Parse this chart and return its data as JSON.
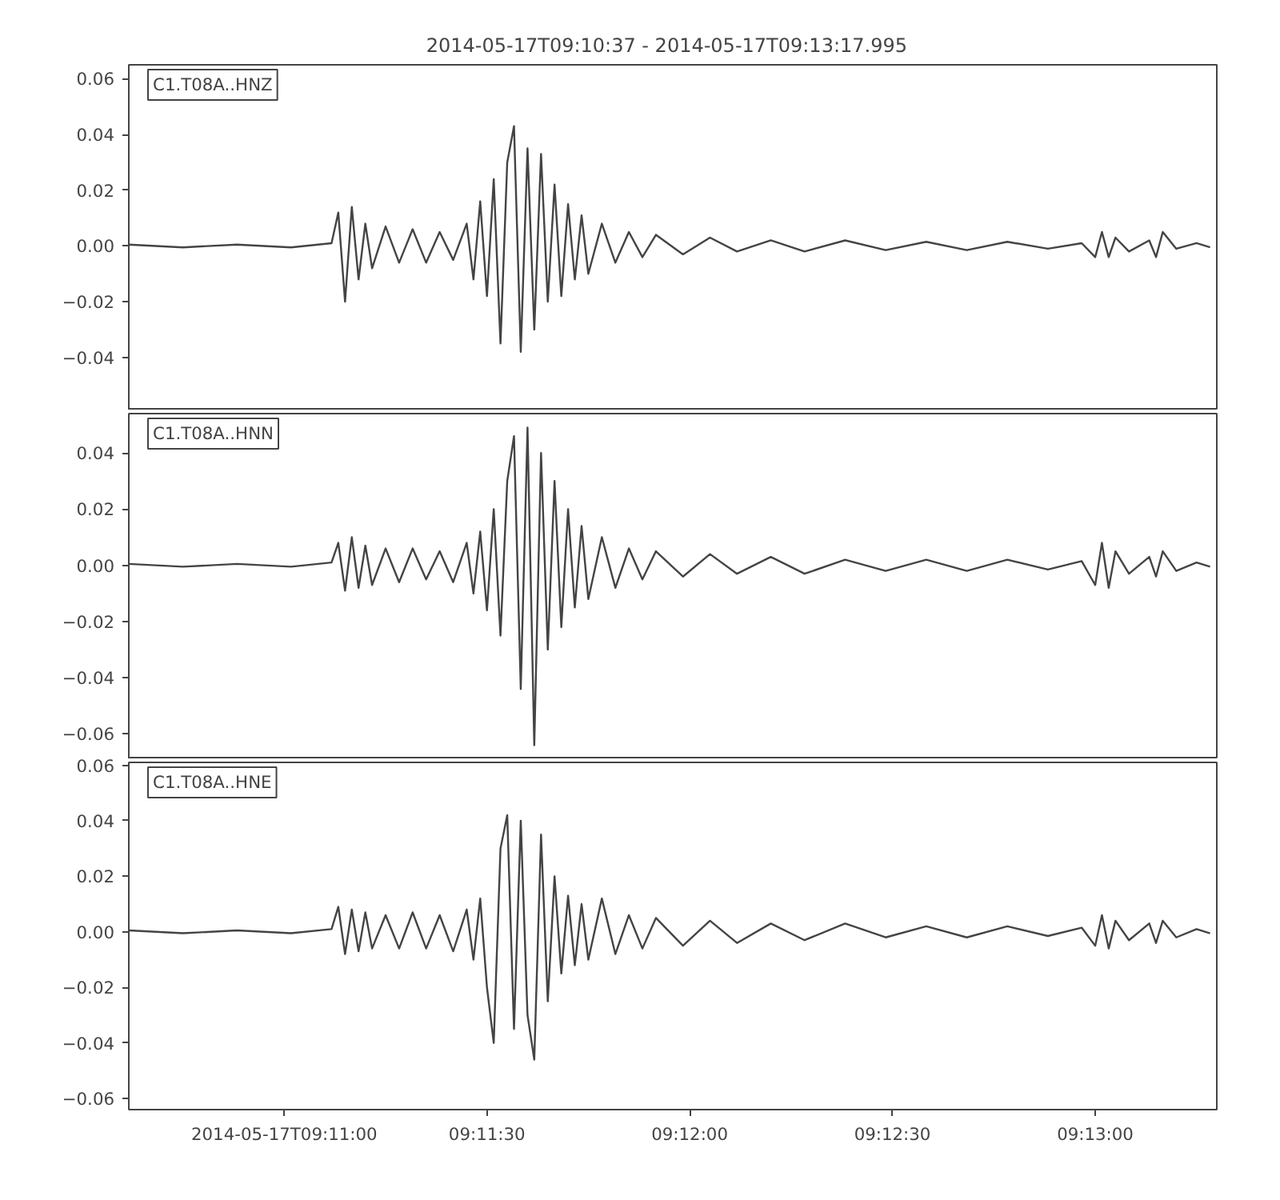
{
  "chart_data": [
    {
      "type": "line",
      "title": "2014-05-17T09:10:37  -  2014-05-17T09:13:17.995",
      "annotations": [
        "C1.T08A..HNZ"
      ],
      "tick_labels": "y",
      "grid": false,
      "xlim": [
        "2014-05-17T09:10:37",
        "2014-05-17T09:13:17.995"
      ],
      "ylim": [
        -0.059,
        0.065
      ],
      "yticks": [
        {
          "value": -0.04,
          "label": "−0.04"
        },
        {
          "value": -0.02,
          "label": "−0.02"
        },
        {
          "value": 0,
          "label": "0.00"
        },
        {
          "value": 0.02,
          "label": "0.02"
        },
        {
          "value": 0.04,
          "label": "0.04"
        },
        {
          "value": 0.06,
          "label": "0.06"
        }
      ],
      "series": [
        {
          "color": "#444444",
          "x": [
            "2014-05-17T09:10:37",
            "2014-05-17T09:10:45",
            "2014-05-17T09:10:53",
            "2014-05-17T09:11:01",
            "2014-05-17T09:11:07",
            "2014-05-17T09:11:08",
            "2014-05-17T09:11:09",
            "2014-05-17T09:11:10",
            "2014-05-17T09:11:11",
            "2014-05-17T09:11:12",
            "2014-05-17T09:11:13",
            "2014-05-17T09:11:15",
            "2014-05-17T09:11:17",
            "2014-05-17T09:11:19",
            "2014-05-17T09:11:21",
            "2014-05-17T09:11:23",
            "2014-05-17T09:11:25",
            "2014-05-17T09:11:27",
            "2014-05-17T09:11:28",
            "2014-05-17T09:11:29",
            "2014-05-17T09:11:30",
            "2014-05-17T09:11:31",
            "2014-05-17T09:11:32",
            "2014-05-17T09:11:33",
            "2014-05-17T09:11:34",
            "2014-05-17T09:11:35",
            "2014-05-17T09:11:36",
            "2014-05-17T09:11:37",
            "2014-05-17T09:11:38",
            "2014-05-17T09:11:39",
            "2014-05-17T09:11:40",
            "2014-05-17T09:11:41",
            "2014-05-17T09:11:42",
            "2014-05-17T09:11:43",
            "2014-05-17T09:11:44",
            "2014-05-17T09:11:45",
            "2014-05-17T09:11:47",
            "2014-05-17T09:11:49",
            "2014-05-17T09:11:51",
            "2014-05-17T09:11:53",
            "2014-05-17T09:11:55",
            "2014-05-17T09:11:59",
            "2014-05-17T09:12:03",
            "2014-05-17T09:12:07",
            "2014-05-17T09:12:12",
            "2014-05-17T09:12:17",
            "2014-05-17T09:12:23",
            "2014-05-17T09:12:29",
            "2014-05-17T09:12:35",
            "2014-05-17T09:12:41",
            "2014-05-17T09:12:47",
            "2014-05-17T09:12:53",
            "2014-05-17T09:12:58",
            "2014-05-17T09:13:00",
            "2014-05-17T09:13:01",
            "2014-05-17T09:13:02",
            "2014-05-17T09:13:03",
            "2014-05-17T09:13:05",
            "2014-05-17T09:13:08",
            "2014-05-17T09:13:09",
            "2014-05-17T09:13:10",
            "2014-05-17T09:13:12",
            "2014-05-17T09:13:15",
            "2014-05-17T09:13:17"
          ],
          "values": [
            0.0005,
            -0.0005,
            0.0005,
            -0.0005,
            0.001,
            0.012,
            -0.02,
            0.014,
            -0.012,
            0.008,
            -0.008,
            0.007,
            -0.006,
            0.006,
            -0.006,
            0.005,
            -0.005,
            0.008,
            -0.012,
            0.016,
            -0.018,
            0.024,
            -0.035,
            0.03,
            0.043,
            -0.038,
            0.035,
            -0.03,
            0.033,
            -0.02,
            0.022,
            -0.018,
            0.015,
            -0.012,
            0.011,
            -0.01,
            0.008,
            -0.006,
            0.005,
            -0.004,
            0.004,
            -0.003,
            0.003,
            -0.002,
            0.002,
            -0.002,
            0.002,
            -0.0015,
            0.0015,
            -0.0015,
            0.0015,
            -0.001,
            0.001,
            -0.004,
            0.005,
            -0.004,
            0.003,
            -0.002,
            0.002,
            -0.004,
            0.005,
            -0.001,
            0.001,
            -0.0005
          ]
        }
      ]
    },
    {
      "type": "line",
      "annotations": [
        "C1.T08A..HNN"
      ],
      "tick_labels": "y",
      "grid": false,
      "xlim": [
        "2014-05-17T09:10:37",
        "2014-05-17T09:13:17.995"
      ],
      "ylim": [
        -0.069,
        0.054
      ],
      "yticks": [
        {
          "value": -0.06,
          "label": "−0.06"
        },
        {
          "value": -0.04,
          "label": "−0.04"
        },
        {
          "value": -0.02,
          "label": "−0.02"
        },
        {
          "value": 0,
          "label": "0.00"
        },
        {
          "value": 0.02,
          "label": "0.02"
        },
        {
          "value": 0.04,
          "label": "0.04"
        }
      ],
      "series": [
        {
          "color": "#444444",
          "x": [
            "2014-05-17T09:10:37",
            "2014-05-17T09:10:45",
            "2014-05-17T09:10:53",
            "2014-05-17T09:11:01",
            "2014-05-17T09:11:07",
            "2014-05-17T09:11:08",
            "2014-05-17T09:11:09",
            "2014-05-17T09:11:10",
            "2014-05-17T09:11:11",
            "2014-05-17T09:11:12",
            "2014-05-17T09:11:13",
            "2014-05-17T09:11:15",
            "2014-05-17T09:11:17",
            "2014-05-17T09:11:19",
            "2014-05-17T09:11:21",
            "2014-05-17T09:11:23",
            "2014-05-17T09:11:25",
            "2014-05-17T09:11:27",
            "2014-05-17T09:11:28",
            "2014-05-17T09:11:29",
            "2014-05-17T09:11:30",
            "2014-05-17T09:11:31",
            "2014-05-17T09:11:32",
            "2014-05-17T09:11:33",
            "2014-05-17T09:11:34",
            "2014-05-17T09:11:35",
            "2014-05-17T09:11:36",
            "2014-05-17T09:11:37",
            "2014-05-17T09:11:38",
            "2014-05-17T09:11:39",
            "2014-05-17T09:11:40",
            "2014-05-17T09:11:41",
            "2014-05-17T09:11:42",
            "2014-05-17T09:11:43",
            "2014-05-17T09:11:44",
            "2014-05-17T09:11:45",
            "2014-05-17T09:11:47",
            "2014-05-17T09:11:49",
            "2014-05-17T09:11:51",
            "2014-05-17T09:11:53",
            "2014-05-17T09:11:55",
            "2014-05-17T09:11:59",
            "2014-05-17T09:12:03",
            "2014-05-17T09:12:07",
            "2014-05-17T09:12:12",
            "2014-05-17T09:12:17",
            "2014-05-17T09:12:23",
            "2014-05-17T09:12:29",
            "2014-05-17T09:12:35",
            "2014-05-17T09:12:41",
            "2014-05-17T09:12:47",
            "2014-05-17T09:12:53",
            "2014-05-17T09:12:58",
            "2014-05-17T09:13:00",
            "2014-05-17T09:13:01",
            "2014-05-17T09:13:02",
            "2014-05-17T09:13:03",
            "2014-05-17T09:13:05",
            "2014-05-17T09:13:08",
            "2014-05-17T09:13:09",
            "2014-05-17T09:13:10",
            "2014-05-17T09:13:12",
            "2014-05-17T09:13:15",
            "2014-05-17T09:13:17"
          ],
          "values": [
            0.0005,
            -0.0005,
            0.0005,
            -0.0005,
            0.001,
            0.008,
            -0.009,
            0.01,
            -0.008,
            0.007,
            -0.007,
            0.006,
            -0.006,
            0.006,
            -0.005,
            0.005,
            -0.006,
            0.008,
            -0.01,
            0.012,
            -0.016,
            0.02,
            -0.025,
            0.03,
            0.046,
            -0.044,
            0.049,
            -0.064,
            0.04,
            -0.03,
            0.03,
            -0.022,
            0.02,
            -0.015,
            0.014,
            -0.012,
            0.01,
            -0.008,
            0.006,
            -0.005,
            0.005,
            -0.004,
            0.004,
            -0.003,
            0.003,
            -0.003,
            0.002,
            -0.002,
            0.002,
            -0.002,
            0.002,
            -0.0015,
            0.0015,
            -0.007,
            0.008,
            -0.008,
            0.005,
            -0.003,
            0.003,
            -0.004,
            0.005,
            -0.002,
            0.001,
            -0.0005
          ]
        }
      ]
    },
    {
      "type": "line",
      "annotations": [
        "C1.T08A..HNE"
      ],
      "grid": false,
      "xlim": [
        "2014-05-17T09:10:37",
        "2014-05-17T09:13:17.995"
      ],
      "ylim": [
        -0.064,
        0.061
      ],
      "xticks": [
        {
          "value": "2014-05-17T09:11:00",
          "label": "2014-05-17T09:11:00"
        },
        {
          "value": "2014-05-17T09:11:30",
          "label": "09:11:30"
        },
        {
          "value": "2014-05-17T09:12:00",
          "label": "09:12:00"
        },
        {
          "value": "2014-05-17T09:12:30",
          "label": "09:12:30"
        },
        {
          "value": "2014-05-17T09:13:00",
          "label": "09:13:00"
        }
      ],
      "yticks": [
        {
          "value": -0.06,
          "label": "−0.06"
        },
        {
          "value": -0.04,
          "label": "−0.04"
        },
        {
          "value": -0.02,
          "label": "−0.02"
        },
        {
          "value": 0,
          "label": "0.00"
        },
        {
          "value": 0.02,
          "label": "0.02"
        },
        {
          "value": 0.04,
          "label": "0.04"
        },
        {
          "value": 0.06,
          "label": "0.06"
        }
      ],
      "series": [
        {
          "color": "#444444",
          "x": [
            "2014-05-17T09:10:37",
            "2014-05-17T09:10:45",
            "2014-05-17T09:10:53",
            "2014-05-17T09:11:01",
            "2014-05-17T09:11:07",
            "2014-05-17T09:11:08",
            "2014-05-17T09:11:09",
            "2014-05-17T09:11:10",
            "2014-05-17T09:11:11",
            "2014-05-17T09:11:12",
            "2014-05-17T09:11:13",
            "2014-05-17T09:11:15",
            "2014-05-17T09:11:17",
            "2014-05-17T09:11:19",
            "2014-05-17T09:11:21",
            "2014-05-17T09:11:23",
            "2014-05-17T09:11:25",
            "2014-05-17T09:11:27",
            "2014-05-17T09:11:28",
            "2014-05-17T09:11:29",
            "2014-05-17T09:11:30",
            "2014-05-17T09:11:31",
            "2014-05-17T09:11:32",
            "2014-05-17T09:11:33",
            "2014-05-17T09:11:34",
            "2014-05-17T09:11:35",
            "2014-05-17T09:11:36",
            "2014-05-17T09:11:37",
            "2014-05-17T09:11:38",
            "2014-05-17T09:11:39",
            "2014-05-17T09:11:40",
            "2014-05-17T09:11:41",
            "2014-05-17T09:11:42",
            "2014-05-17T09:11:43",
            "2014-05-17T09:11:44",
            "2014-05-17T09:11:45",
            "2014-05-17T09:11:47",
            "2014-05-17T09:11:49",
            "2014-05-17T09:11:51",
            "2014-05-17T09:11:53",
            "2014-05-17T09:11:55",
            "2014-05-17T09:11:59",
            "2014-05-17T09:12:03",
            "2014-05-17T09:12:07",
            "2014-05-17T09:12:12",
            "2014-05-17T09:12:17",
            "2014-05-17T09:12:23",
            "2014-05-17T09:12:29",
            "2014-05-17T09:12:35",
            "2014-05-17T09:12:41",
            "2014-05-17T09:12:47",
            "2014-05-17T09:12:53",
            "2014-05-17T09:12:58",
            "2014-05-17T09:13:00",
            "2014-05-17T09:13:01",
            "2014-05-17T09:13:02",
            "2014-05-17T09:13:03",
            "2014-05-17T09:13:05",
            "2014-05-17T09:13:08",
            "2014-05-17T09:13:09",
            "2014-05-17T09:13:10",
            "2014-05-17T09:13:12",
            "2014-05-17T09:13:15",
            "2014-05-17T09:13:17"
          ],
          "values": [
            0.0005,
            -0.0005,
            0.0005,
            -0.0005,
            0.001,
            0.009,
            -0.008,
            0.008,
            -0.007,
            0.007,
            -0.006,
            0.006,
            -0.006,
            0.007,
            -0.006,
            0.006,
            -0.007,
            0.008,
            -0.01,
            0.012,
            -0.02,
            -0.04,
            0.03,
            0.042,
            -0.035,
            0.04,
            -0.03,
            -0.046,
            0.035,
            -0.025,
            0.02,
            -0.015,
            0.013,
            -0.012,
            0.01,
            -0.01,
            0.012,
            -0.008,
            0.006,
            -0.006,
            0.005,
            -0.005,
            0.004,
            -0.004,
            0.003,
            -0.003,
            0.003,
            -0.002,
            0.002,
            -0.002,
            0.002,
            -0.0015,
            0.0015,
            -0.005,
            0.006,
            -0.006,
            0.004,
            -0.003,
            0.003,
            -0.004,
            0.004,
            -0.002,
            0.001,
            -0.0005
          ]
        }
      ]
    }
  ]
}
